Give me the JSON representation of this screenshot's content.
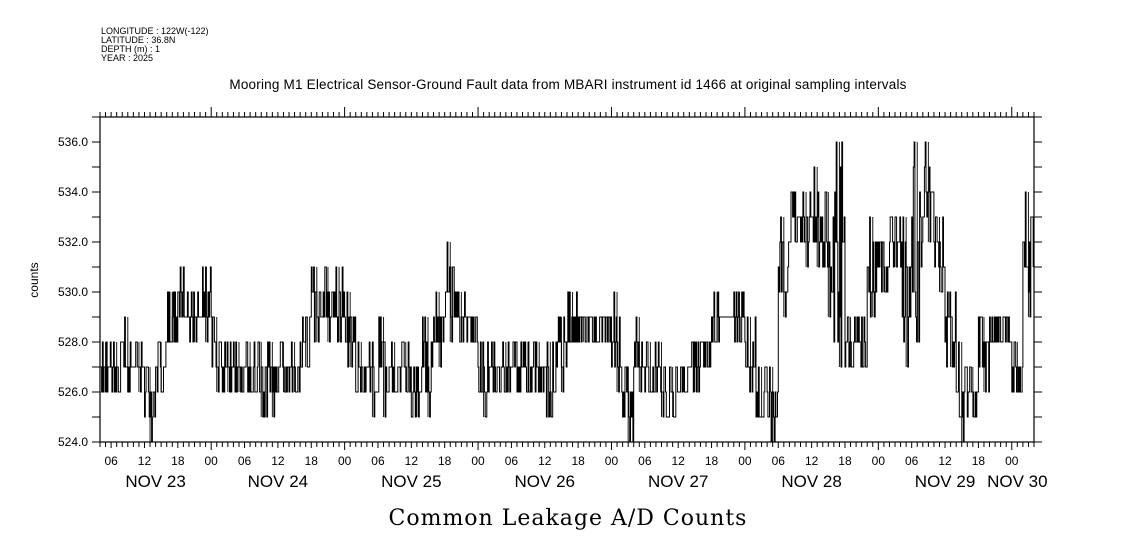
{
  "header": {
    "longitude": "LONGITUDE : 122W(-122)",
    "latitude": "LATITUDE : 36.8N",
    "depth": "DEPTH (m) : 1",
    "year": "YEAR : 2025"
  },
  "chart_data": {
    "type": "line",
    "title": "Mooring M1 Electrical Sensor-Ground Fault data from MBARI instrument id 1466 at original sampling intervals",
    "subtitle": "Common Leakage A/D Counts",
    "ylabel": "counts",
    "xlabel": "",
    "ylim": [
      524,
      537
    ],
    "yticks": [
      "524.0",
      "526.0",
      "528.0",
      "530.0",
      "532.0",
      "534.0",
      "536.0"
    ],
    "x_unit": "hours since NOV 23 00:00",
    "xlim": [
      4,
      172
    ],
    "hour_ticks": [
      {
        "h": 6,
        "label": "06"
      },
      {
        "h": 12,
        "label": "12"
      },
      {
        "h": 18,
        "label": "18"
      },
      {
        "h": 24,
        "label": "00"
      },
      {
        "h": 30,
        "label": "06"
      },
      {
        "h": 36,
        "label": "12"
      },
      {
        "h": 42,
        "label": "18"
      },
      {
        "h": 48,
        "label": "00"
      },
      {
        "h": 54,
        "label": "06"
      },
      {
        "h": 60,
        "label": "12"
      },
      {
        "h": 66,
        "label": "18"
      },
      {
        "h": 72,
        "label": "00"
      },
      {
        "h": 78,
        "label": "06"
      },
      {
        "h": 84,
        "label": "12"
      },
      {
        "h": 90,
        "label": "18"
      },
      {
        "h": 96,
        "label": "00"
      },
      {
        "h": 102,
        "label": "06"
      },
      {
        "h": 108,
        "label": "12"
      },
      {
        "h": 114,
        "label": "18"
      },
      {
        "h": 120,
        "label": "00"
      },
      {
        "h": 126,
        "label": "06"
      },
      {
        "h": 132,
        "label": "12"
      },
      {
        "h": 138,
        "label": "18"
      },
      {
        "h": 144,
        "label": "00"
      },
      {
        "h": 150,
        "label": "06"
      },
      {
        "h": 156,
        "label": "12"
      },
      {
        "h": 162,
        "label": "18"
      },
      {
        "h": 168,
        "label": "00"
      }
    ],
    "day_labels": [
      {
        "h": 14,
        "label": "NOV 23"
      },
      {
        "h": 36,
        "label": "NOV 24"
      },
      {
        "h": 60,
        "label": "NOV 25"
      },
      {
        "h": 84,
        "label": "NOV 26"
      },
      {
        "h": 108,
        "label": "NOV 27"
      },
      {
        "h": 132,
        "label": "NOV 28"
      },
      {
        "h": 156,
        "label": "NOV 29"
      },
      {
        "h": 169,
        "label": "NOV 30"
      }
    ],
    "block_start_hour": 4,
    "block_hours": 2,
    "series": [
      {
        "name": "low",
        "values": [
          526,
          526,
          526,
          526,
          524,
          526,
          528,
          529,
          528,
          528,
          526,
          526,
          526,
          526,
          525,
          525,
          526,
          526,
          527,
          528,
          528,
          528,
          527,
          526,
          525,
          525,
          526,
          526,
          525,
          525,
          527,
          528,
          528,
          528,
          525,
          526,
          526,
          526,
          526,
          526,
          525,
          526,
          528,
          528,
          528,
          528,
          526,
          524,
          526,
          526,
          525,
          525,
          526,
          526,
          527,
          528,
          529,
          528,
          526,
          525,
          524,
          529,
          532,
          531,
          531,
          529,
          527,
          527,
          527,
          529,
          530,
          531,
          527,
          528,
          532,
          530,
          527,
          524,
          525,
          526,
          528,
          528,
          526,
          529
        ]
      },
      {
        "name": "high",
        "values": [
          528,
          528,
          529,
          528,
          527,
          528,
          530,
          531,
          530,
          531,
          529,
          528,
          528,
          528,
          528,
          528,
          528,
          528,
          529,
          531,
          531,
          531,
          530,
          528,
          528,
          529,
          528,
          528,
          527,
          529,
          530,
          532,
          530,
          529,
          528,
          528,
          528,
          528,
          528,
          528,
          528,
          529,
          530,
          529,
          529,
          529,
          530,
          527,
          529,
          528,
          528,
          527,
          527,
          528,
          528,
          530,
          529,
          530,
          529,
          527,
          527,
          533,
          534,
          534,
          535,
          534,
          536,
          529,
          529,
          533,
          532,
          533,
          533,
          536,
          536,
          533,
          530,
          528,
          527,
          529,
          529,
          529,
          528,
          534
        ]
      }
    ]
  }
}
